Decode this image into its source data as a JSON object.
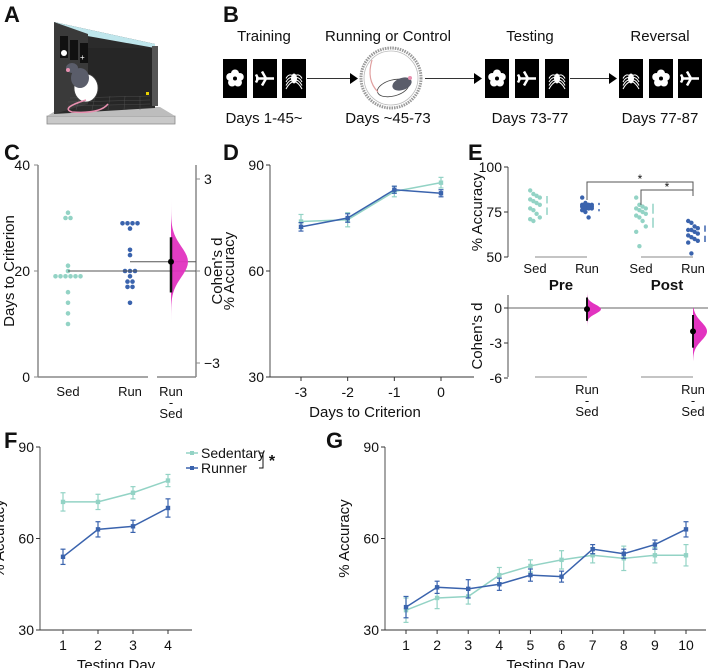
{
  "panels": {
    "A": {
      "letter": "A"
    },
    "B": {
      "letter": "B"
    },
    "C": {
      "letter": "C"
    },
    "D": {
      "letter": "D"
    },
    "E": {
      "letter": "E"
    },
    "F": {
      "letter": "F"
    },
    "G": {
      "letter": "G"
    }
  },
  "colors": {
    "sedentary": "#93d3c5",
    "runner": "#3a63ad",
    "effect": "#e233c0",
    "axis": "#888888"
  },
  "timeline": {
    "stages": [
      {
        "title": "Training",
        "days": "Days 1-45~",
        "icons": [
          "flower-icon",
          "airplane-icon",
          "spider-icon"
        ]
      },
      {
        "title": "Running or Control",
        "days": "Days ~45-73",
        "icons": [
          "running-wheel-icon"
        ]
      },
      {
        "title": "Testing",
        "days": "Days 73-77",
        "icons": [
          "flower-icon",
          "airplane-icon",
          "spider-icon"
        ]
      },
      {
        "title": "Reversal",
        "days": "Days 77-87",
        "icons": [
          "spider-icon",
          "flower-icon",
          "airplane-icon"
        ]
      }
    ]
  },
  "chart_data": [
    {
      "id": "C",
      "type": "scatter",
      "title": "",
      "ylabel": "Days to Criterion",
      "ylabel_right": "Cohen's d",
      "ylim": [
        0,
        40
      ],
      "yticks": [
        0,
        20,
        40
      ],
      "right_ylim": [
        -3.5,
        3.5
      ],
      "right_yticks": [
        "3",
        "0",
        "−3"
      ],
      "categories": [
        "Sed",
        "Run"
      ],
      "effect_label": [
        "Run",
        "-",
        "Sed"
      ],
      "series": [
        {
          "name": "Sed",
          "values": [
            31,
            30,
            30,
            21,
            20,
            19,
            19,
            19,
            19,
            19,
            19,
            16,
            14,
            12,
            10
          ]
        },
        {
          "name": "Run",
          "values": [
            29,
            29,
            29,
            29,
            28,
            24,
            23,
            20,
            20,
            20,
            19,
            18,
            18,
            17,
            17,
            14
          ]
        }
      ],
      "effect": {
        "d": 0.3,
        "ci": [
          -0.7,
          1.1
        ]
      }
    },
    {
      "id": "D",
      "type": "line",
      "xlabel": "Days to Criterion",
      "ylabel": "% Accuracy",
      "ylim": [
        30,
        90
      ],
      "yticks": [
        30,
        60,
        90
      ],
      "x": [
        -3,
        -2,
        -1,
        0
      ],
      "xticklabels": [
        "-3",
        "-2",
        "-1",
        "0"
      ],
      "series": [
        {
          "name": "Sedentary",
          "values": [
            74,
            74.5,
            82.5,
            85
          ],
          "err": [
            2,
            2,
            1.5,
            1.5
          ]
        },
        {
          "name": "Runner",
          "values": [
            72.5,
            75,
            83,
            82
          ],
          "err": [
            1.2,
            1.2,
            1,
            1
          ]
        }
      ]
    },
    {
      "id": "E",
      "type": "scatter",
      "ylabel": "% Accuracy",
      "ylim": [
        50,
        100
      ],
      "yticks": [
        50,
        75,
        100
      ],
      "groups": [
        "Pre",
        "Post"
      ],
      "categories": [
        "Sed",
        "Run",
        "Sed",
        "Run"
      ],
      "series": [
        {
          "name": "Pre Sed",
          "values": [
            87,
            85,
            84,
            83,
            82,
            81,
            80,
            79,
            77,
            76,
            74,
            72,
            71,
            70
          ]
        },
        {
          "name": "Pre Run",
          "values": [
            83,
            80,
            79,
            79,
            79,
            78,
            78,
            78,
            78,
            77,
            77,
            77,
            76,
            75,
            72
          ]
        },
        {
          "name": "Post Sed",
          "values": [
            83,
            79,
            78,
            77,
            77,
            76,
            75,
            74,
            73,
            72,
            70,
            67,
            64,
            56
          ]
        },
        {
          "name": "Post Run",
          "values": [
            70,
            69,
            67,
            66,
            65,
            65,
            64,
            63,
            62,
            61,
            60,
            59,
            58,
            52
          ]
        }
      ],
      "significance": [
        "*",
        "*"
      ],
      "effect_ylabel": "Cohen's d",
      "effect_ylim": [
        -6,
        2
      ],
      "effect_yticks": [
        "0",
        "-3",
        "-6"
      ],
      "effects": [
        {
          "label": [
            "Run",
            "-",
            "Sed"
          ],
          "d": -0.1,
          "ci": [
            -1.1,
            0.9
          ]
        },
        {
          "label": [
            "Run",
            "-",
            "Sed"
          ],
          "d": -2.0,
          "ci": [
            -3.4,
            -0.6
          ]
        }
      ]
    },
    {
      "id": "F",
      "type": "line",
      "xlabel": "Testing Day",
      "ylabel": "% Accuracy",
      "ylim": [
        30,
        90
      ],
      "yticks": [
        30,
        60,
        90
      ],
      "x": [
        1,
        2,
        3,
        4
      ],
      "legend": {
        "placement": "top-right",
        "significance": "*"
      },
      "series": [
        {
          "name": "Sedentary",
          "values": [
            72,
            72,
            75,
            79
          ],
          "err": [
            3,
            2.5,
            2,
            2
          ]
        },
        {
          "name": "Runner",
          "values": [
            54,
            63,
            64,
            70
          ],
          "err": [
            2.5,
            2.5,
            2,
            3
          ]
        }
      ]
    },
    {
      "id": "G",
      "type": "line",
      "xlabel": "Testing Day",
      "ylabel": "% Accuracy",
      "ylim": [
        30,
        90
      ],
      "yticks": [
        30,
        60,
        90
      ],
      "x": [
        1,
        2,
        3,
        4,
        5,
        6,
        7,
        8,
        9,
        10
      ],
      "series": [
        {
          "name": "Sedentary",
          "values": [
            36.5,
            40.5,
            41,
            48,
            51,
            53,
            54.5,
            53.5,
            54.5,
            54.5
          ],
          "err": [
            4,
            3.5,
            2.5,
            2.5,
            2,
            3,
            2.5,
            4,
            2.5,
            3.5
          ]
        },
        {
          "name": "Runner",
          "values": [
            37.5,
            44,
            43.5,
            45,
            48,
            47.5,
            56.5,
            55,
            58,
            63
          ],
          "err": [
            3.5,
            2,
            3,
            2,
            2,
            1.8,
            1.5,
            1.5,
            1.5,
            2.5
          ]
        }
      ]
    }
  ]
}
